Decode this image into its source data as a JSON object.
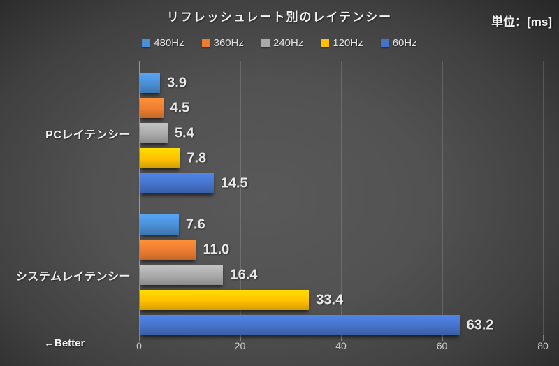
{
  "title": "リフレッシュレート別のレイテンシー",
  "unit_label": "単位：[ms]",
  "better_label": "←Better",
  "chart_data": {
    "type": "bar",
    "orientation": "horizontal",
    "title": "リフレッシュレート別のレイテンシー",
    "unit": "ms",
    "categories": [
      "PCレイテンシー",
      "システムレイテンシー"
    ],
    "series": [
      {
        "name": "480Hz",
        "color": "#4A8FD4",
        "values": [
          3.9,
          7.6
        ]
      },
      {
        "name": "360Hz",
        "color": "#ED7D31",
        "values": [
          4.5,
          11.0
        ]
      },
      {
        "name": "240Hz",
        "color": "#A9A9A9",
        "values": [
          5.4,
          16.4
        ]
      },
      {
        "name": "120Hz",
        "color": "#FFC000",
        "values": [
          7.8,
          33.4
        ]
      },
      {
        "name": "60Hz",
        "color": "#4573C8",
        "values": [
          14.5,
          63.2
        ]
      }
    ],
    "xlim": [
      0,
      80
    ],
    "x_ticks": [
      0,
      20,
      40,
      60,
      80
    ],
    "grid": true,
    "legend_position": "top",
    "value_label_decimals": 1
  }
}
